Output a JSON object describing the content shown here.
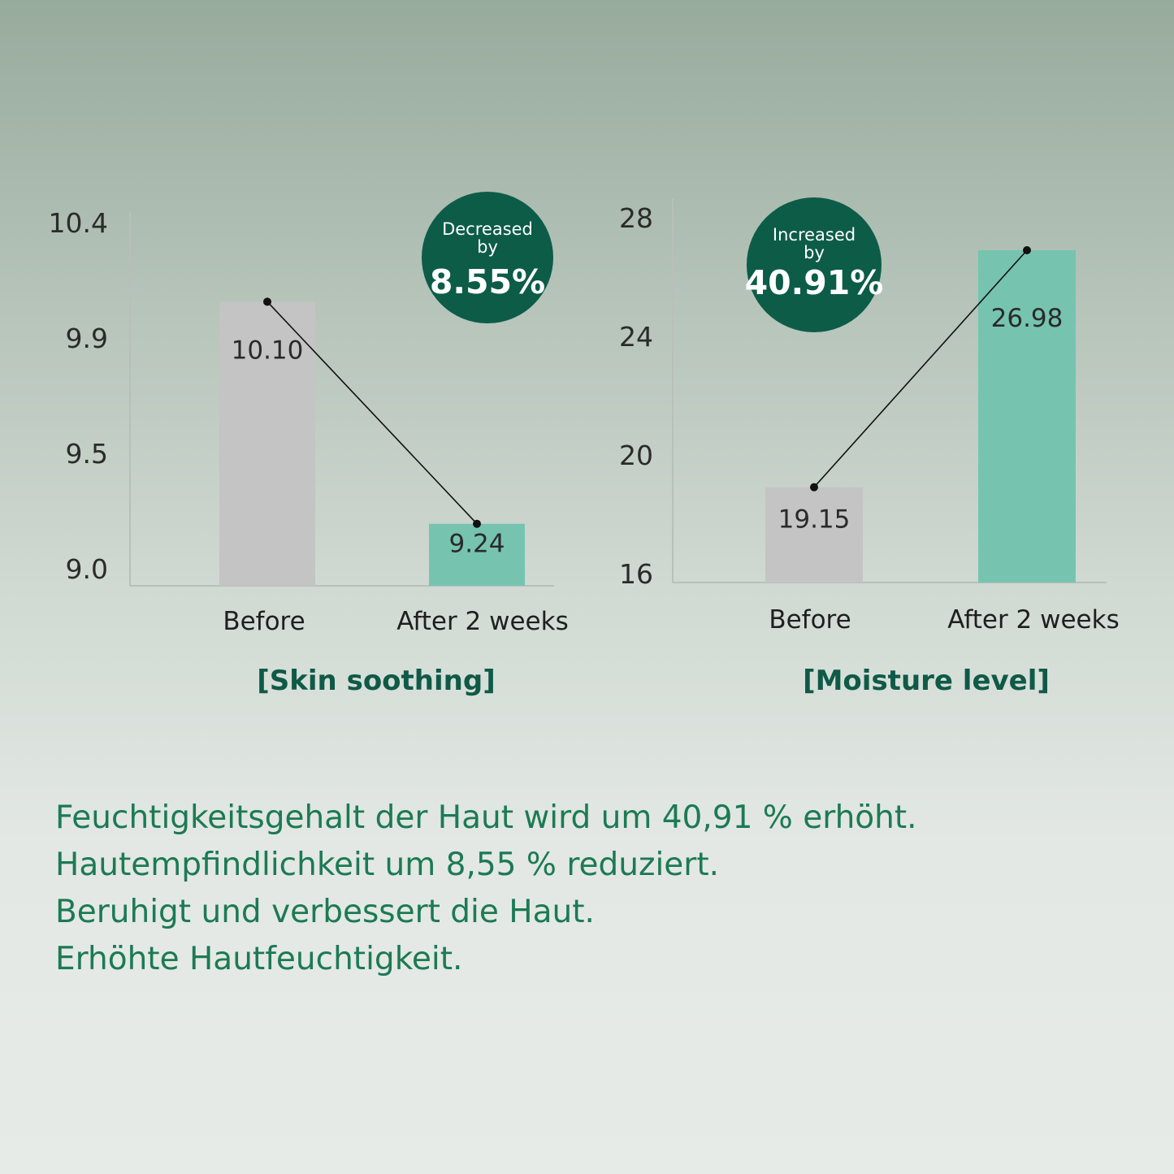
{
  "chart_data": [
    {
      "type": "bar",
      "title": "[Skin soothing]",
      "categories": [
        "Before",
        "After 2 weeks"
      ],
      "values": [
        10.1,
        9.24
      ],
      "value_labels": [
        "10.10",
        "9.24"
      ],
      "yticks": [
        "9.0",
        "9.5",
        "9.9",
        "10.4"
      ],
      "ytick_values": [
        9.0,
        9.5,
        9.9,
        10.4
      ],
      "ylim": [
        9.0,
        10.4
      ],
      "colors": [
        "#c4c4c4",
        "#76c4b0"
      ],
      "connector_line": true,
      "badge": {
        "line1": "Decreased",
        "line2": "by",
        "value": "8.55%",
        "color": "#0c5c48"
      }
    },
    {
      "type": "bar",
      "title": "[Moisture level]",
      "categories": [
        "Before",
        "After 2 weeks"
      ],
      "values": [
        19.15,
        26.98
      ],
      "value_labels": [
        "19.15",
        "26.98"
      ],
      "yticks": [
        "16",
        "20",
        "24",
        "28"
      ],
      "ytick_values": [
        16,
        20,
        24,
        28
      ],
      "ylim": [
        16,
        28
      ],
      "colors": [
        "#c4c4c4",
        "#76c4b0"
      ],
      "connector_line": true,
      "badge": {
        "line1": "Increased",
        "line2": "by",
        "value": "40.91%",
        "color": "#0c5c48"
      }
    }
  ],
  "caption": [
    "Feuchtigkeitsgehalt der Haut wird um 40,91 % erhöht.",
    "Hautempfindlichkeit um 8,55 % reduziert.",
    "Beruhigt und verbessert die Haut.",
    "Erhöhte Hautfeuchtigkeit."
  ]
}
